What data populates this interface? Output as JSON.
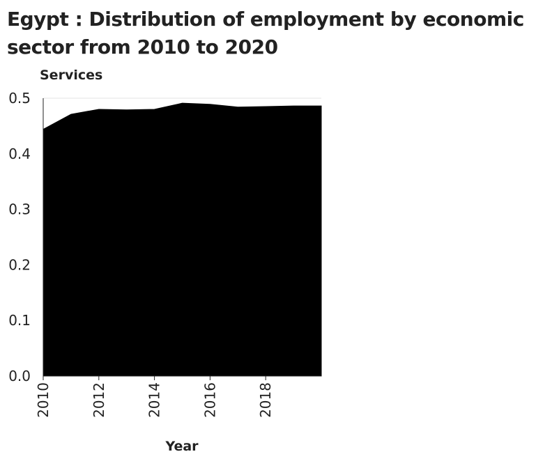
{
  "chart_data": {
    "type": "area",
    "title": "Egypt : Distribution of employment by economic sector from 2010 to 2020",
    "xlabel": "Year",
    "ylabel": "Services",
    "x": [
      2010,
      2011,
      2012,
      2013,
      2014,
      2015,
      2016,
      2017,
      2018,
      2019,
      2020
    ],
    "series": [
      {
        "values": [
          0.444,
          0.471,
          0.48,
          0.479,
          0.48,
          0.491,
          0.489,
          0.484,
          0.485,
          0.486,
          0.486
        ],
        "color": "#000000"
      }
    ],
    "xlim": [
      2010,
      2020
    ],
    "ylim": [
      0,
      0.5
    ],
    "xticks": [
      "2010",
      "2012",
      "2014",
      "2016",
      "2018"
    ],
    "yticks": [
      "0.0",
      "0.1",
      "0.2",
      "0.3",
      "0.4",
      "0.5"
    ],
    "grid": true
  }
}
